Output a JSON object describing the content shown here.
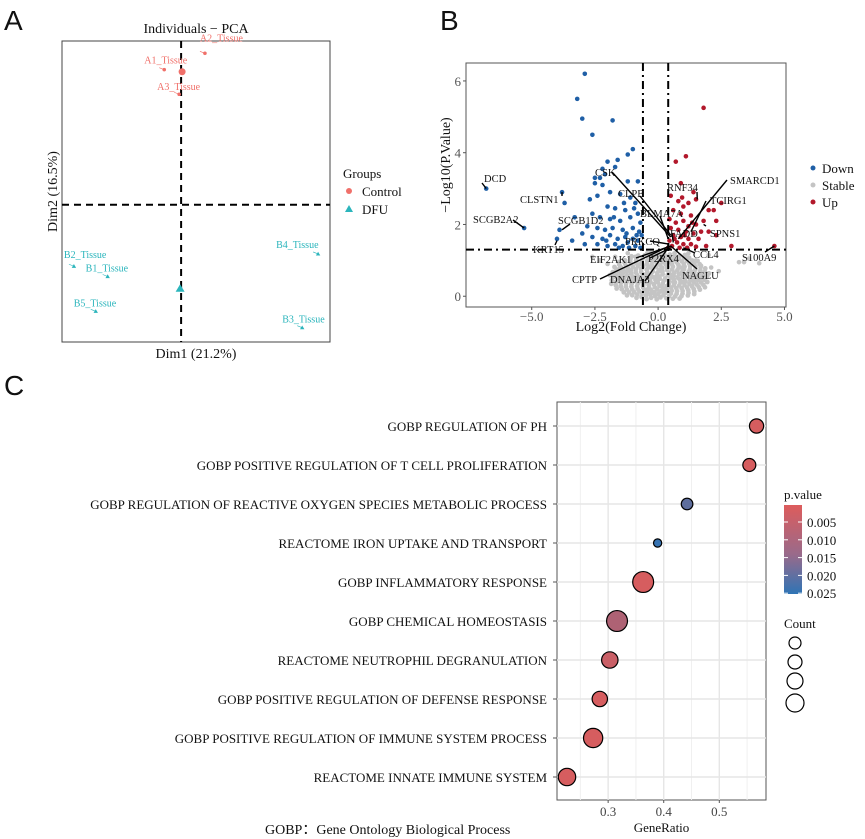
{
  "panel_labels": [
    "A",
    "B",
    "C"
  ],
  "footnote": "GOBP：Gene Ontology Biological Process",
  "chart_data": [
    {
      "type": "scatter",
      "id": "pca",
      "title": "Individuals − PCA",
      "xlabel": "Dim1 (21.2%)",
      "ylabel": "Dim2 (16.5%)",
      "xlim": [
        -6,
        7.5
      ],
      "ylim": [
        -6.7,
        8
      ],
      "reference_lines": {
        "x": 0,
        "y": 0
      },
      "legend": {
        "title": "Groups",
        "placement": "right"
      },
      "series": [
        {
          "name": "Control",
          "color": "#F0706A",
          "marker": "circle",
          "points": [
            {
              "label": "A2_Tissue",
              "x": 1.2,
              "y": 7.4
            },
            {
              "label": "A1_Tissue",
              "x": -0.85,
              "y": 6.6
            },
            {
              "label": "A3_Tissue",
              "x": -0.1,
              "y": 5.4
            }
          ],
          "centroid": {
            "x": 0.05,
            "y": 6.5
          }
        },
        {
          "name": "DFU",
          "color": "#2BB5BC",
          "marker": "triangle",
          "points": [
            {
              "label": "B2_Tissue",
              "x": -5.4,
              "y": -3.0
            },
            {
              "label": "B1_Tissue",
              "x": -3.7,
              "y": -3.5
            },
            {
              "label": "B5_Tissue",
              "x": -4.3,
              "y": -5.2
            },
            {
              "label": "B4_Tissue",
              "x": 6.9,
              "y": -2.4
            },
            {
              "label": "B3_Tissue",
              "x": 6.1,
              "y": -6.0
            }
          ],
          "centroid": {
            "x": -0.05,
            "y": -4.1
          }
        }
      ]
    },
    {
      "type": "scatter",
      "id": "volcano",
      "xlabel": "Log2(Fold Change)",
      "ylabel": "−Log10(P.Value)",
      "xlim": [
        -7.6,
        5.06
      ],
      "ylim": [
        -0.3,
        6.5
      ],
      "xticks": [
        -5.0,
        -2.5,
        0.0,
        2.5,
        5.0
      ],
      "xtick_labels": [
        "−5.0",
        "−2.5",
        "0.0",
        "2.5",
        "5.0"
      ],
      "yticks": [
        0,
        2,
        4,
        6
      ],
      "ytick_labels": [
        "0",
        "2",
        "4",
        "6"
      ],
      "thresholds": {
        "x": [
          -0.6,
          0.4
        ],
        "y": 1.3
      },
      "legend": {
        "placement": "right"
      },
      "series": [
        {
          "name": "Down",
          "color": "#1F5FA6",
          "points": [
            [
              -2.9,
              6.2
            ],
            [
              -3.2,
              5.5
            ],
            [
              -3.0,
              4.95
            ],
            [
              -1.8,
              4.9
            ],
            [
              -2.6,
              4.5
            ],
            [
              -1.0,
              4.1
            ],
            [
              -1.2,
              3.95
            ],
            [
              -1.6,
              3.8
            ],
            [
              -2.0,
              3.75
            ],
            [
              -1.7,
              3.6
            ],
            [
              -2.2,
              3.55
            ],
            [
              -2.1,
              3.4
            ],
            [
              -2.3,
              3.3
            ],
            [
              -2.5,
              3.3
            ],
            [
              -2.5,
              3.15
            ],
            [
              -0.8,
              3.2
            ],
            [
              -1.2,
              3.2
            ],
            [
              -2.2,
              3.1
            ],
            [
              -3.8,
              2.9
            ],
            [
              -3.7,
              2.6
            ],
            [
              -4.0,
              1.6
            ],
            [
              -3.9,
              1.85
            ],
            [
              -6.8,
              3.0
            ],
            [
              -5.3,
              1.9
            ],
            [
              -3.3,
              2.2
            ],
            [
              -3.4,
              1.55
            ],
            [
              -2.7,
              2.7
            ],
            [
              -2.4,
              2.8
            ],
            [
              -1.9,
              2.9
            ],
            [
              -1.5,
              2.85
            ],
            [
              -1.1,
              2.75
            ],
            [
              -0.9,
              2.6
            ],
            [
              -2.0,
              2.5
            ],
            [
              -1.7,
              2.45
            ],
            [
              -1.3,
              2.4
            ],
            [
              -2.6,
              2.3
            ],
            [
              -2.3,
              2.2
            ],
            [
              -1.9,
              2.15
            ],
            [
              -1.5,
              2.1
            ],
            [
              -1.1,
              2.2
            ],
            [
              -0.8,
              2.3
            ],
            [
              -0.7,
              2.05
            ],
            [
              -2.8,
              1.95
            ],
            [
              -2.4,
              1.9
            ],
            [
              -2.1,
              1.85
            ],
            [
              -1.8,
              1.9
            ],
            [
              -1.4,
              1.85
            ],
            [
              -1.0,
              1.9
            ],
            [
              -0.75,
              1.8
            ],
            [
              -2.6,
              1.65
            ],
            [
              -2.2,
              1.6
            ],
            [
              -1.9,
              1.7
            ],
            [
              -1.6,
              1.6
            ],
            [
              -1.3,
              1.65
            ],
            [
              -1.0,
              1.6
            ],
            [
              -0.8,
              1.55
            ],
            [
              -0.65,
              1.7
            ],
            [
              -2.4,
              1.45
            ],
            [
              -2.0,
              1.4
            ],
            [
              -1.7,
              1.45
            ],
            [
              -1.4,
              1.4
            ],
            [
              -1.2,
              1.5
            ],
            [
              -0.9,
              1.4
            ],
            [
              -0.7,
              1.35
            ],
            [
              -3.0,
              1.75
            ],
            [
              -2.9,
              1.45
            ],
            [
              -1.55,
              1.35
            ],
            [
              -1.15,
              1.35
            ],
            [
              -0.85,
              1.7
            ],
            [
              -1.25,
              1.75
            ],
            [
              -2.05,
              1.55
            ],
            [
              -0.95,
              2.45
            ],
            [
              -1.35,
              2.6
            ],
            [
              -1.75,
              2.2
            ]
          ]
        },
        {
          "name": "Stable",
          "color": "#C4C4C4",
          "points": [
            [
              -2.3,
              1.0
            ],
            [
              -2.0,
              0.9
            ],
            [
              -1.7,
              1.1
            ],
            [
              -1.5,
              0.8
            ],
            [
              -1.3,
              1.0
            ],
            [
              -1.1,
              0.7
            ],
            [
              -0.9,
              1.1
            ],
            [
              -0.7,
              0.9
            ],
            [
              -0.5,
              0.6
            ],
            [
              -0.3,
              0.8
            ],
            [
              -0.1,
              0.5
            ],
            [
              0.1,
              0.7
            ],
            [
              0.3,
              0.9
            ],
            [
              0.5,
              0.6
            ],
            [
              0.7,
              1.0
            ],
            [
              0.9,
              0.8
            ],
            [
              1.1,
              1.1
            ],
            [
              1.3,
              0.7
            ],
            [
              1.5,
              1.0
            ],
            [
              1.7,
              0.85
            ],
            [
              2.1,
              0.8
            ],
            [
              2.4,
              0.7
            ],
            [
              3.2,
              0.95
            ],
            [
              3.4,
              0.95
            ],
            [
              3.6,
              1.05
            ],
            [
              4.0,
              0.92
            ],
            [
              -0.6,
              0.3
            ],
            [
              -0.4,
              0.2
            ],
            [
              -0.2,
              0.1
            ],
            [
              0.0,
              0.05
            ],
            [
              0.2,
              0.15
            ],
            [
              0.4,
              0.3
            ],
            [
              0.6,
              0.4
            ],
            [
              -0.8,
              0.5
            ],
            [
              -1.0,
              0.4
            ],
            [
              0.8,
              0.5
            ],
            [
              1.0,
              0.4
            ],
            [
              -1.2,
              1.2
            ],
            [
              1.2,
              1.2
            ],
            [
              -1.8,
              0.6
            ],
            [
              1.8,
              0.6
            ],
            [
              -0.3,
              1.2
            ],
            [
              0.1,
              1.15
            ],
            [
              -2.6,
              1.1
            ],
            [
              2.0,
              1.15
            ],
            [
              -1.4,
              0.5
            ],
            [
              1.4,
              0.45
            ]
          ]
        },
        {
          "name": "Up",
          "color": "#B2182B",
          "points": [
            [
              1.8,
              5.25
            ],
            [
              1.1,
              3.9
            ],
            [
              0.7,
              3.75
            ],
            [
              0.9,
              3.15
            ],
            [
              1.5,
              2.7
            ],
            [
              2.5,
              2.6
            ],
            [
              2.0,
              2.4
            ],
            [
              2.2,
              2.4
            ],
            [
              1.8,
              2.1
            ],
            [
              2.3,
              2.1
            ],
            [
              2.0,
              1.8
            ],
            [
              2.3,
              1.7
            ],
            [
              2.9,
              1.4
            ],
            [
              4.6,
              1.4
            ],
            [
              1.9,
              1.4
            ],
            [
              0.5,
              2.8
            ],
            [
              0.8,
              2.65
            ],
            [
              1.0,
              2.5
            ],
            [
              1.2,
              2.6
            ],
            [
              0.6,
              2.4
            ],
            [
              0.9,
              2.3
            ],
            [
              1.3,
              2.25
            ],
            [
              0.45,
              2.15
            ],
            [
              0.7,
              2.05
            ],
            [
              1.0,
              2.1
            ],
            [
              1.2,
              1.95
            ],
            [
              1.5,
              2.0
            ],
            [
              0.5,
              1.9
            ],
            [
              0.8,
              1.85
            ],
            [
              1.1,
              1.8
            ],
            [
              1.4,
              1.75
            ],
            [
              0.6,
              1.7
            ],
            [
              0.9,
              1.65
            ],
            [
              1.2,
              1.6
            ],
            [
              1.6,
              1.6
            ],
            [
              0.45,
              1.55
            ],
            [
              0.75,
              1.5
            ],
            [
              1.0,
              1.45
            ],
            [
              1.3,
              1.45
            ],
            [
              0.55,
              1.4
            ],
            [
              0.85,
              1.35
            ],
            [
              1.15,
              1.35
            ],
            [
              1.5,
              1.38
            ],
            [
              0.65,
              1.6
            ],
            [
              1.05,
              1.7
            ],
            [
              0.4,
              1.35
            ],
            [
              1.7,
              1.8
            ],
            [
              1.35,
              2.05
            ],
            [
              0.95,
              2.75
            ],
            [
              1.4,
              2.9
            ]
          ]
        }
      ],
      "annotations": [
        {
          "label": "DCD",
          "x": -6.8,
          "y": 3.0
        },
        {
          "label": "CLSTN1",
          "x": -3.8,
          "y": 2.9
        },
        {
          "label": "SCGB2A2",
          "x": -5.3,
          "y": 1.9
        },
        {
          "label": "SCGB1D2",
          "x": -3.8,
          "y": 1.85
        },
        {
          "label": "KRT15",
          "x": -4.0,
          "y": 1.55
        },
        {
          "label": "CSK",
          "x": 0.5,
          "y": 1.65
        },
        {
          "label": "CLPB",
          "x": 0.5,
          "y": 1.7
        },
        {
          "label": "BLMA7A",
          "x": 0.4,
          "y": 1.6
        },
        {
          "label": "PRKCQ",
          "x": 0.45,
          "y": 1.45
        },
        {
          "label": "FADD",
          "x": 0.6,
          "y": 1.5
        },
        {
          "label": "RNF34",
          "x": 1.55,
          "y": 2.7
        },
        {
          "label": "SMARCD1",
          "x": 0.8,
          "y": 1.6
        },
        {
          "label": "TCIRG1",
          "x": 1.3,
          "y": 1.8
        },
        {
          "label": "SPNS1",
          "x": 1.8,
          "y": 2.0
        },
        {
          "label": "CCL4",
          "x": 1.0,
          "y": 1.35
        },
        {
          "label": "NAGLU",
          "x": 0.5,
          "y": 1.4
        },
        {
          "label": "S100A9",
          "x": 4.6,
          "y": 1.4
        },
        {
          "label": "EIF2AK1",
          "x": 0.5,
          "y": 1.4
        },
        {
          "label": "P2RX4",
          "x": 0.5,
          "y": 1.35
        },
        {
          "label": "CPTP",
          "x": 0.45,
          "y": 1.4
        },
        {
          "label": "DNAJA3",
          "x": 0.4,
          "y": 1.35
        }
      ]
    },
    {
      "type": "scatter",
      "id": "enrichment",
      "xlabel": "GeneRatio",
      "ylabel": "",
      "xlim": [
        0.208,
        0.584
      ],
      "xticks": [
        0.3,
        0.4,
        0.5
      ],
      "xtick_labels": [
        "0.3",
        "0.4",
        "0.5"
      ],
      "categories": [
        "GOBP REGULATION OF PH",
        "GOBP POSITIVE REGULATION OF T CELL PROLIFERATION",
        "GOBP REGULATION OF REACTIVE OXYGEN SPECIES METABOLIC PROCESS",
        "REACTOME IRON UPTAKE AND TRANSPORT",
        "GOBP INFLAMMATORY RESPONSE",
        "GOBP CHEMICAL HOMEOSTASIS",
        "REACTOME NEUTROPHIL DEGRANULATION",
        "GOBP POSITIVE REGULATION OF DEFENSE RESPONSE",
        "GOBP POSITIVE REGULATION OF IMMUNE SYSTEM PROCESS",
        "REACTOME INNATE IMMUNE SYSTEM"
      ],
      "gene_ratio": [
        0.567,
        0.554,
        0.442,
        0.389,
        0.363,
        0.316,
        0.303,
        0.285,
        0.273,
        0.226
      ],
      "count": [
        6,
        5,
        4,
        2,
        13,
        13,
        8,
        7,
        11,
        9
      ],
      "p_value": [
        0.002,
        0.002,
        0.02,
        0.026,
        0.002,
        0.008,
        0.004,
        0.002,
        0.002,
        0.002
      ],
      "color_legend": {
        "title": "p.value",
        "ticks": [
          "0.005",
          "0.010",
          "0.015",
          "0.020",
          "0.025"
        ],
        "low_color": "#DD5C5C",
        "high_color": "#2F74B5"
      },
      "size_legend": {
        "title": "Count"
      }
    }
  ]
}
